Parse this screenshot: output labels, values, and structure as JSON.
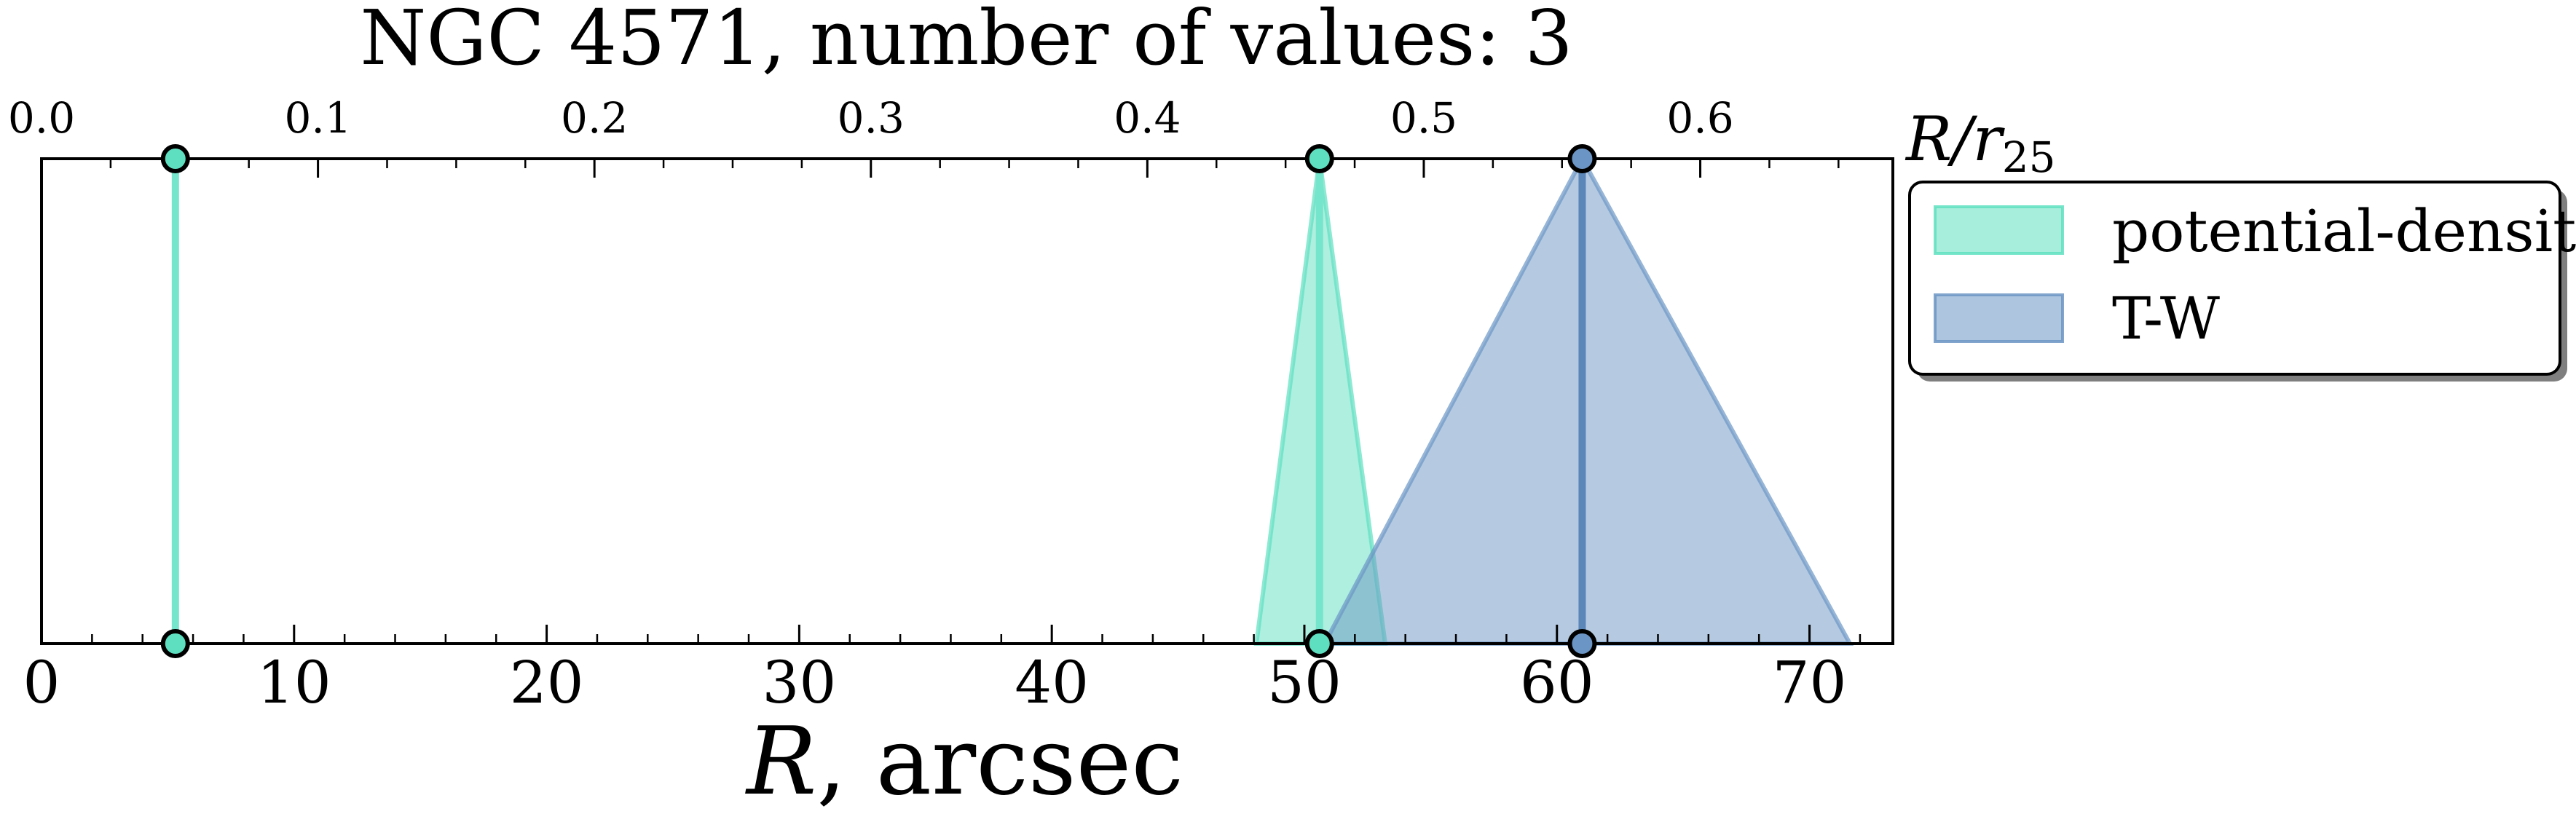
{
  "chart_data": {
    "type": "line",
    "title": "NGC 4571, number of values: 3",
    "xlabel_bottom": {
      "italic": "R",
      "rest": ", arcsec"
    },
    "xlabel_top": {
      "main": "R/r",
      "sub": "25"
    },
    "xlim": [
      0,
      73.3
    ],
    "x_ticks_major": [
      0,
      10,
      20,
      30,
      40,
      50,
      60,
      70
    ],
    "x_tick_labels": [
      "0",
      "10",
      "20",
      "30",
      "40",
      "50",
      "60",
      "70"
    ],
    "x_ticks_minor_step": 2,
    "top_axis_scale_r25_per_arcsec": 0.009136,
    "top_ticks": [
      0.0,
      0.1,
      0.2,
      0.3,
      0.4,
      0.5,
      0.6
    ],
    "top_tick_labels": [
      "0.0",
      "0.1",
      "0.2",
      "0.3",
      "0.4",
      "0.5",
      "0.6"
    ],
    "top_ticks_minor_step": 0.025,
    "series": [
      {
        "name": "potential-density",
        "color": "#5ee0c0",
        "line_color": "#75e6cb",
        "values": [
          5.3,
          50.6
        ],
        "error_spans": [
          [
            5.3,
            5.3
          ],
          [
            48.1,
            53.2
          ]
        ]
      },
      {
        "name": "T-W",
        "color": "#6b95c4",
        "line_color": "#5b86b8",
        "values": [
          61.0
        ],
        "error_spans": [
          [
            50.8,
            71.6
          ]
        ]
      }
    ],
    "grid": false,
    "legend_position": "outside right-top"
  }
}
